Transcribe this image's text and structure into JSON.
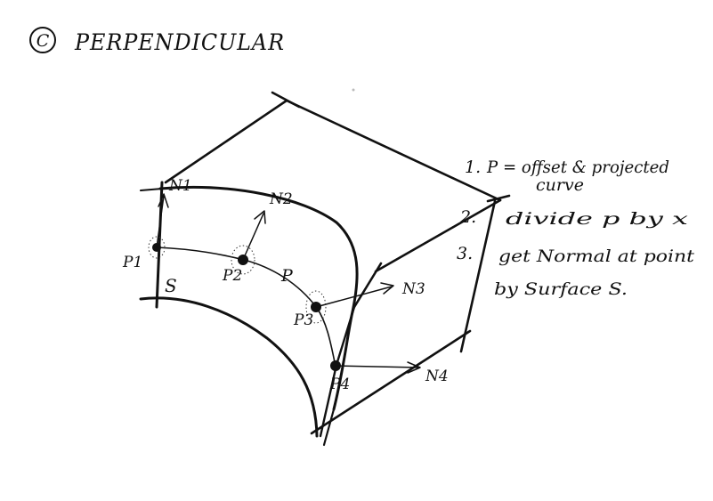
{
  "title": {
    "letter": "C",
    "text": "PERPENDICULAR"
  },
  "steps": [
    {
      "number": "1.",
      "line1": "P = offset & projected",
      "line2": "curve"
    },
    {
      "number": "2.",
      "line1": "divide p by x"
    },
    {
      "number": "3.",
      "line1": "get Normal at point",
      "line2": "by Surface S."
    }
  ],
  "labels": {
    "surface": "S",
    "curve": "P",
    "points": [
      "P1",
      "P2",
      "P3",
      "P4"
    ],
    "normals": [
      "N1",
      "N2",
      "N3",
      "N4"
    ]
  },
  "colors": {
    "ink": "#111111",
    "paper": "#ffffff"
  }
}
